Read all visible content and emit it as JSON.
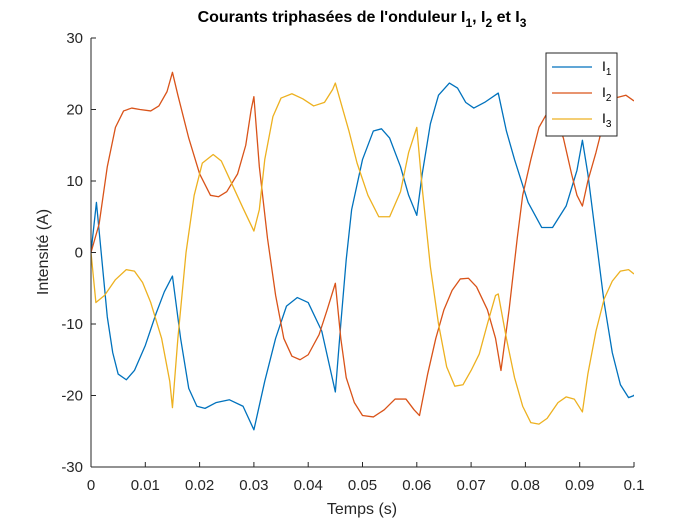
{
  "chart_data": {
    "type": "line",
    "title": {
      "prefix": "Courants triphasées de l'onduleur ",
      "parts": [
        {
          "base": "I",
          "sub": "1",
          "after": ", "
        },
        {
          "base": "I",
          "sub": "2",
          "after": " et "
        },
        {
          "base": "I",
          "sub": "3",
          "after": ""
        }
      ]
    },
    "xlabel": "Temps (s)",
    "ylabel": "Intensité (A)",
    "xlim": [
      0,
      0.1
    ],
    "ylim": [
      -30,
      30
    ],
    "xticks": [
      0,
      0.01,
      0.02,
      0.03,
      0.04,
      0.05,
      0.06,
      0.07,
      0.08,
      0.09,
      0.1
    ],
    "xtick_labels": [
      "0",
      "0.01",
      "0.02",
      "0.03",
      "0.04",
      "0.05",
      "0.06",
      "0.07",
      "0.08",
      "0.09",
      "0.1"
    ],
    "yticks": [
      -30,
      -20,
      -10,
      0,
      10,
      20,
      30
    ],
    "ytick_labels": [
      "-30",
      "-20",
      "-10",
      "0",
      "10",
      "20",
      "30"
    ],
    "grid": false,
    "legend_position": "top-right",
    "series": [
      {
        "name": "I",
        "name_sub": "1",
        "color": "#0072BD",
        "points": [
          [
            0,
            0
          ],
          [
            0.001,
            7
          ],
          [
            0.002,
            -1
          ],
          [
            0.003,
            -9
          ],
          [
            0.004,
            -14
          ],
          [
            0.005,
            -17
          ],
          [
            0.0065,
            -17.8
          ],
          [
            0.008,
            -16.5
          ],
          [
            0.01,
            -13
          ],
          [
            0.012,
            -8.5
          ],
          [
            0.0135,
            -5.5
          ],
          [
            0.015,
            -3.3
          ],
          [
            0.0165,
            -12
          ],
          [
            0.018,
            -19
          ],
          [
            0.0195,
            -21.5
          ],
          [
            0.021,
            -21.8
          ],
          [
            0.023,
            -21
          ],
          [
            0.0255,
            -20.6
          ],
          [
            0.028,
            -21.5
          ],
          [
            0.03,
            -24.8
          ],
          [
            0.032,
            -18
          ],
          [
            0.034,
            -12
          ],
          [
            0.036,
            -7.5
          ],
          [
            0.038,
            -6.3
          ],
          [
            0.04,
            -7
          ],
          [
            0.0425,
            -11
          ],
          [
            0.045,
            -19.5
          ],
          [
            0.046,
            -10
          ],
          [
            0.047,
            -1
          ],
          [
            0.048,
            6
          ],
          [
            0.05,
            13
          ],
          [
            0.052,
            17
          ],
          [
            0.0535,
            17.3
          ],
          [
            0.055,
            16
          ],
          [
            0.057,
            12
          ],
          [
            0.0585,
            8
          ],
          [
            0.06,
            5.2
          ],
          [
            0.061,
            11
          ],
          [
            0.0625,
            18
          ],
          [
            0.064,
            22
          ],
          [
            0.066,
            23.7
          ],
          [
            0.0675,
            23
          ],
          [
            0.069,
            21
          ],
          [
            0.0705,
            20.2
          ],
          [
            0.0725,
            21
          ],
          [
            0.075,
            22.3
          ],
          [
            0.0765,
            17
          ],
          [
            0.078,
            13
          ],
          [
            0.0805,
            7
          ],
          [
            0.083,
            3.5
          ],
          [
            0.085,
            3.5
          ],
          [
            0.0875,
            6.5
          ],
          [
            0.0895,
            11.5
          ],
          [
            0.0905,
            15.7
          ],
          [
            0.0915,
            11
          ],
          [
            0.093,
            2
          ],
          [
            0.0945,
            -7
          ],
          [
            0.096,
            -14
          ],
          [
            0.0975,
            -18.5
          ],
          [
            0.099,
            -20.3
          ],
          [
            0.1,
            -20
          ],
          [
            0.1015,
            -18
          ]
        ]
      },
      {
        "name": "I",
        "name_sub": "2",
        "color": "#D95319",
        "points": [
          [
            0,
            0
          ],
          [
            0.0015,
            4
          ],
          [
            0.003,
            12
          ],
          [
            0.0045,
            17.5
          ],
          [
            0.006,
            19.8
          ],
          [
            0.0075,
            20.2
          ],
          [
            0.009,
            20
          ],
          [
            0.011,
            19.8
          ],
          [
            0.0125,
            20.5
          ],
          [
            0.014,
            22.5
          ],
          [
            0.015,
            25.2
          ],
          [
            0.016,
            22
          ],
          [
            0.018,
            16
          ],
          [
            0.02,
            11
          ],
          [
            0.022,
            8
          ],
          [
            0.0235,
            7.8
          ],
          [
            0.025,
            8.5
          ],
          [
            0.027,
            11
          ],
          [
            0.0285,
            15
          ],
          [
            0.0295,
            20
          ],
          [
            0.03,
            21.8
          ],
          [
            0.031,
            12
          ],
          [
            0.0325,
            2
          ],
          [
            0.034,
            -6
          ],
          [
            0.0355,
            -12
          ],
          [
            0.037,
            -14.5
          ],
          [
            0.0385,
            -15
          ],
          [
            0.04,
            -14.3
          ],
          [
            0.042,
            -11.5
          ],
          [
            0.0435,
            -8
          ],
          [
            0.045,
            -4.3
          ],
          [
            0.046,
            -12
          ],
          [
            0.047,
            -17.5
          ],
          [
            0.0485,
            -21
          ],
          [
            0.05,
            -22.8
          ],
          [
            0.052,
            -23
          ],
          [
            0.054,
            -22
          ],
          [
            0.056,
            -20.5
          ],
          [
            0.058,
            -20.5
          ],
          [
            0.0595,
            -22
          ],
          [
            0.0605,
            -22.8
          ],
          [
            0.062,
            -17
          ],
          [
            0.0635,
            -12
          ],
          [
            0.065,
            -8
          ],
          [
            0.0665,
            -5.3
          ],
          [
            0.068,
            -3.7
          ],
          [
            0.0695,
            -3.6
          ],
          [
            0.071,
            -4.8
          ],
          [
            0.073,
            -8
          ],
          [
            0.0745,
            -12
          ],
          [
            0.0755,
            -16.5
          ],
          [
            0.077,
            -8
          ],
          [
            0.0785,
            2
          ],
          [
            0.0795,
            8
          ],
          [
            0.081,
            13
          ],
          [
            0.0825,
            17.5
          ],
          [
            0.084,
            19.5
          ],
          [
            0.0855,
            19
          ],
          [
            0.087,
            16
          ],
          [
            0.0885,
            11
          ],
          [
            0.0895,
            8
          ],
          [
            0.0905,
            6.5
          ],
          [
            0.0915,
            10
          ],
          [
            0.093,
            14
          ],
          [
            0.0945,
            18.5
          ],
          [
            0.096,
            21.5
          ],
          [
            0.0985,
            22
          ],
          [
            0.1,
            21.2
          ]
        ]
      },
      {
        "name": "I",
        "name_sub": "3",
        "color": "#EDB120",
        "points": [
          [
            0,
            0
          ],
          [
            0.0009,
            -7
          ],
          [
            0.0025,
            -6
          ],
          [
            0.0045,
            -3.8
          ],
          [
            0.0065,
            -2.4
          ],
          [
            0.008,
            -2.6
          ],
          [
            0.0095,
            -4.2
          ],
          [
            0.011,
            -7
          ],
          [
            0.013,
            -12
          ],
          [
            0.0145,
            -18
          ],
          [
            0.015,
            -21.7
          ],
          [
            0.016,
            -12
          ],
          [
            0.0175,
            0
          ],
          [
            0.019,
            8
          ],
          [
            0.0205,
            12.5
          ],
          [
            0.0225,
            13.7
          ],
          [
            0.024,
            12.8
          ],
          [
            0.026,
            9.5
          ],
          [
            0.028,
            6.2
          ],
          [
            0.0295,
            3.8
          ],
          [
            0.03,
            3
          ],
          [
            0.031,
            6
          ],
          [
            0.032,
            13
          ],
          [
            0.0335,
            19
          ],
          [
            0.035,
            21.6
          ],
          [
            0.037,
            22.2
          ],
          [
            0.039,
            21.5
          ],
          [
            0.041,
            20.5
          ],
          [
            0.043,
            21
          ],
          [
            0.0445,
            22.8
          ],
          [
            0.045,
            23.7
          ],
          [
            0.046,
            21
          ],
          [
            0.0475,
            17
          ],
          [
            0.049,
            12.5
          ],
          [
            0.051,
            8
          ],
          [
            0.053,
            5
          ],
          [
            0.055,
            5
          ],
          [
            0.057,
            8.5
          ],
          [
            0.0585,
            14
          ],
          [
            0.06,
            17.5
          ],
          [
            0.061,
            9
          ],
          [
            0.0625,
            -2
          ],
          [
            0.064,
            -10
          ],
          [
            0.0655,
            -16
          ],
          [
            0.067,
            -18.7
          ],
          [
            0.0685,
            -18.5
          ],
          [
            0.07,
            -16.5
          ],
          [
            0.0715,
            -14.2
          ],
          [
            0.073,
            -10
          ],
          [
            0.0745,
            -6
          ],
          [
            0.075,
            -5.8
          ],
          [
            0.0765,
            -12
          ],
          [
            0.078,
            -17.5
          ],
          [
            0.0795,
            -21.5
          ],
          [
            0.081,
            -23.8
          ],
          [
            0.0825,
            -24
          ],
          [
            0.084,
            -23.2
          ],
          [
            0.086,
            -21
          ],
          [
            0.0875,
            -20.2
          ],
          [
            0.089,
            -20.5
          ],
          [
            0.0905,
            -22.3
          ],
          [
            0.0915,
            -17
          ],
          [
            0.093,
            -11
          ],
          [
            0.0945,
            -6.5
          ],
          [
            0.096,
            -4
          ],
          [
            0.0975,
            -2.6
          ],
          [
            0.099,
            -2.4
          ],
          [
            0.1,
            -3
          ]
        ]
      }
    ]
  }
}
